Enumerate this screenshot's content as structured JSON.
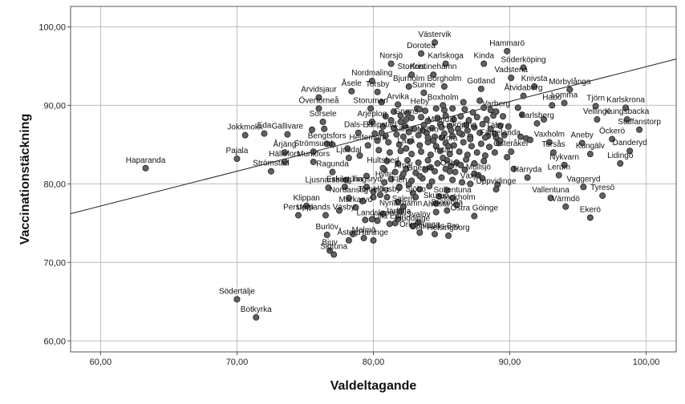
{
  "chart_data": {
    "type": "scatter",
    "xlabel": "Valdeltagande",
    "ylabel": "Vaccinationstäckning",
    "xlim": [
      57.8,
      102.2
    ],
    "ylim": [
      58.6,
      102.6
    ],
    "x_ticks": [
      "60,00",
      "70,00",
      "80,00",
      "90,00",
      "100,00"
    ],
    "y_ticks": [
      "60,00",
      "70,00",
      "80,00",
      "90,00",
      "100,00"
    ],
    "grid": true,
    "colors": {
      "point_fill": "#606060",
      "point_stroke": "#222222",
      "grid": "#bdbdbd",
      "fit_line": "#222222"
    },
    "fit_line": {
      "x": [
        57.8,
        102.2
      ],
      "y": [
        76.2,
        95.9
      ]
    },
    "labeled_points": [
      {
        "name": "Haparanda",
        "x": 63.3,
        "y": 82.0
      },
      {
        "name": "Södertälje",
        "x": 70.0,
        "y": 65.3
      },
      {
        "name": "Botkyrka",
        "x": 71.4,
        "y": 63.0
      },
      {
        "name": "Jokkmokk",
        "x": 70.6,
        "y": 86.2
      },
      {
        "name": "Pajala",
        "x": 70.0,
        "y": 83.2
      },
      {
        "name": "Eda",
        "x": 72.0,
        "y": 86.4
      },
      {
        "name": "Klippan",
        "x": 75.1,
        "y": 77.2
      },
      {
        "name": "Upplands Väsby",
        "x": 76.5,
        "y": 76.0
      },
      {
        "name": "Perstorp",
        "x": 74.5,
        "y": 76.0
      },
      {
        "name": "Burlöv",
        "x": 76.6,
        "y": 73.5
      },
      {
        "name": "Bjuv",
        "x": 76.8,
        "y": 71.5
      },
      {
        "name": "Sigtuna",
        "x": 77.1,
        "y": 71.0
      },
      {
        "name": "Åstorp",
        "x": 78.2,
        "y": 72.8
      },
      {
        "name": "Malmö",
        "x": 79.3,
        "y": 73.1
      },
      {
        "name": "Haninge",
        "x": 80.0,
        "y": 72.8
      },
      {
        "name": "Lilla Edet",
        "x": 81.2,
        "y": 74.9
      },
      {
        "name": "Landskrona",
        "x": 80.3,
        "y": 75.3
      },
      {
        "name": "Huddinge",
        "x": 82.9,
        "y": 74.6
      },
      {
        "name": "Örkelljunga",
        "x": 83.4,
        "y": 73.8
      },
      {
        "name": "Upplands-Bro",
        "x": 84.5,
        "y": 73.6
      },
      {
        "name": "Helsingborg",
        "x": 85.5,
        "y": 73.4
      },
      {
        "name": "Järfälla",
        "x": 81.8,
        "y": 75.5
      },
      {
        "name": "Svalöv",
        "x": 83.3,
        "y": 75.1
      },
      {
        "name": "Alvesta",
        "x": 84.6,
        "y": 76.4
      },
      {
        "name": "Nynäshamn",
        "x": 82.0,
        "y": 76.5
      },
      {
        "name": "Bromölla",
        "x": 85.4,
        "y": 76.6
      },
      {
        "name": "Salem",
        "x": 82.2,
        "y": 77.1
      },
      {
        "name": "Markaryd",
        "x": 78.7,
        "y": 77.0
      },
      {
        "name": "Nordanstig",
        "x": 78.2,
        "y": 78.2
      },
      {
        "name": "Tomelilla",
        "x": 80.0,
        "y": 78.3
      },
      {
        "name": "Högsby",
        "x": 81.0,
        "y": 78.3
      },
      {
        "name": "Sjöbo",
        "x": 83.1,
        "y": 78.3
      },
      {
        "name": "Skurup",
        "x": 84.6,
        "y": 77.5
      },
      {
        "name": "Stockholm",
        "x": 86.1,
        "y": 77.3
      },
      {
        "name": "Östra Göinge",
        "x": 87.4,
        "y": 75.9
      },
      {
        "name": "Sollentuna",
        "x": 85.8,
        "y": 78.2
      },
      {
        "name": "Ljusnarsberg",
        "x": 76.7,
        "y": 79.5
      },
      {
        "name": "Eskilstuna",
        "x": 77.9,
        "y": 79.6
      },
      {
        "name": "Tingsryd",
        "x": 79.5,
        "y": 79.6
      },
      {
        "name": "Hylte",
        "x": 80.8,
        "y": 80.2
      },
      {
        "name": "Flen",
        "x": 81.9,
        "y": 79.5
      },
      {
        "name": "Åmål",
        "x": 82.2,
        "y": 81.3
      },
      {
        "name": "Gnesta",
        "x": 83.4,
        "y": 81.0
      },
      {
        "name": "Osby",
        "x": 85.6,
        "y": 81.6
      },
      {
        "name": "Mullsjö",
        "x": 87.7,
        "y": 81.1
      },
      {
        "name": "Växjö",
        "x": 87.1,
        "y": 80.0
      },
      {
        "name": "Uppvidinge",
        "x": 89.0,
        "y": 79.3
      },
      {
        "name": "Hultsfred",
        "x": 80.7,
        "y": 82.0
      },
      {
        "name": "Ragunda",
        "x": 77.0,
        "y": 81.5
      },
      {
        "name": "Strömstad",
        "x": 72.5,
        "y": 81.6
      },
      {
        "name": "Hällefors",
        "x": 73.5,
        "y": 82.8
      },
      {
        "name": "Munkfors",
        "x": 75.6,
        "y": 82.8
      },
      {
        "name": "Årjäng",
        "x": 73.5,
        "y": 84.0
      },
      {
        "name": "Strömsund",
        "x": 75.6,
        "y": 84.1
      },
      {
        "name": "Ljusdal",
        "x": 78.2,
        "y": 83.3
      },
      {
        "name": "Bengtsfors",
        "x": 76.6,
        "y": 85.1
      },
      {
        "name": "Hedemora",
        "x": 79.6,
        "y": 84.9
      },
      {
        "name": "Gällivare",
        "x": 73.7,
        "y": 86.3
      },
      {
        "name": "Dals-Ed",
        "x": 78.9,
        "y": 86.5
      },
      {
        "name": "Filipstad",
        "x": 80.6,
        "y": 86.5
      },
      {
        "name": "Säffle",
        "x": 82.2,
        "y": 86.0
      },
      {
        "name": "Laxå",
        "x": 82.4,
        "y": 84.5
      },
      {
        "name": "Sorsele",
        "x": 76.3,
        "y": 87.9
      },
      {
        "name": "Arjeplog",
        "x": 79.9,
        "y": 87.9
      },
      {
        "name": "Grums",
        "x": 82.4,
        "y": 88.2
      },
      {
        "name": "Övertorneå",
        "x": 76.0,
        "y": 89.6
      },
      {
        "name": "Arvidsjaur",
        "x": 76.0,
        "y": 91.0
      },
      {
        "name": "Storuman",
        "x": 79.8,
        "y": 89.6
      },
      {
        "name": "Arvika",
        "x": 81.8,
        "y": 90.1
      },
      {
        "name": "Heby",
        "x": 83.4,
        "y": 89.5
      },
      {
        "name": "Boxholm",
        "x": 85.1,
        "y": 90.0
      },
      {
        "name": "Åsele",
        "x": 78.4,
        "y": 91.8
      },
      {
        "name": "Torsby",
        "x": 80.3,
        "y": 91.7
      },
      {
        "name": "Sunne",
        "x": 83.7,
        "y": 91.6
      },
      {
        "name": "Nordmaling",
        "x": 79.9,
        "y": 93.1
      },
      {
        "name": "Bjurholm",
        "x": 82.6,
        "y": 92.4
      },
      {
        "name": "Borgholm",
        "x": 85.2,
        "y": 92.4
      },
      {
        "name": "Gotland",
        "x": 87.9,
        "y": 92.1
      },
      {
        "name": "Storfors",
        "x": 82.8,
        "y": 93.9
      },
      {
        "name": "Kristinehamn",
        "x": 84.4,
        "y": 93.9
      },
      {
        "name": "Norsjö",
        "x": 81.3,
        "y": 95.3
      },
      {
        "name": "Karlskoga",
        "x": 85.3,
        "y": 95.3
      },
      {
        "name": "Kinda",
        "x": 88.1,
        "y": 95.3
      },
      {
        "name": "Dorotea",
        "x": 83.5,
        "y": 96.6
      },
      {
        "name": "Västervik",
        "x": 84.5,
        "y": 98.0
      },
      {
        "name": "Hammarö",
        "x": 89.8,
        "y": 96.9
      },
      {
        "name": "Söderköping",
        "x": 91.0,
        "y": 94.8
      },
      {
        "name": "Vadstena",
        "x": 90.1,
        "y": 93.5
      },
      {
        "name": "Knivsta",
        "x": 91.8,
        "y": 92.4
      },
      {
        "name": "Åtvidaberg",
        "x": 91.0,
        "y": 91.2
      },
      {
        "name": "Mörbylånga",
        "x": 94.4,
        "y": 92.0
      },
      {
        "name": "Habo",
        "x": 93.1,
        "y": 90.0
      },
      {
        "name": "Lomma",
        "x": 94.0,
        "y": 90.3
      },
      {
        "name": "Varberg",
        "x": 89.0,
        "y": 89.2
      },
      {
        "name": "Tjörn",
        "x": 96.3,
        "y": 89.9
      },
      {
        "name": "Karlskrona",
        "x": 98.5,
        "y": 89.7
      },
      {
        "name": "Vellinge",
        "x": 96.4,
        "y": 88.2
      },
      {
        "name": "Kungsbacka",
        "x": 98.6,
        "y": 88.2
      },
      {
        "name": "Staffanstorp",
        "x": 99.5,
        "y": 86.9
      },
      {
        "name": "Karlsberg",
        "x": 92.0,
        "y": 87.7
      },
      {
        "name": "Täby",
        "x": 88.9,
        "y": 86.4
      },
      {
        "name": "Öckerö",
        "x": 97.5,
        "y": 85.7
      },
      {
        "name": "Aneby",
        "x": 95.3,
        "y": 85.2
      },
      {
        "name": "Vaxholm",
        "x": 92.9,
        "y": 85.3
      },
      {
        "name": "Danderyd",
        "x": 98.8,
        "y": 84.2
      },
      {
        "name": "Österåker",
        "x": 90.1,
        "y": 84.1
      },
      {
        "name": "Torsås",
        "x": 93.2,
        "y": 84.0
      },
      {
        "name": "Kungälv",
        "x": 95.9,
        "y": 83.8
      },
      {
        "name": "Färgelanda",
        "x": 89.3,
        "y": 85.5
      },
      {
        "name": "Lidingö",
        "x": 98.1,
        "y": 82.6
      },
      {
        "name": "Nykvarn",
        "x": 94.0,
        "y": 82.4
      },
      {
        "name": "Härryda",
        "x": 91.3,
        "y": 80.8
      },
      {
        "name": "Lerum",
        "x": 93.6,
        "y": 81.1
      },
      {
        "name": "Vaggeryd",
        "x": 95.4,
        "y": 79.6
      },
      {
        "name": "Vallentuna",
        "x": 93.0,
        "y": 78.2
      },
      {
        "name": "Tyresö",
        "x": 96.8,
        "y": 78.5
      },
      {
        "name": "Värmdö",
        "x": 94.1,
        "y": 77.1
      },
      {
        "name": "Ekerö",
        "x": 95.9,
        "y": 75.7
      },
      {
        "name": "Mölndal",
        "x": 85.0,
        "y": 87.2
      },
      {
        "name": "Linköping",
        "x": 86.3,
        "y": 86.5
      },
      {
        "name": "Nybro",
        "x": 84.0,
        "y": 85.9
      },
      {
        "name": "Ystad",
        "x": 85.1,
        "y": 83.3
      },
      {
        "name": "Mora",
        "x": 85.5,
        "y": 84.8
      }
    ],
    "cloud_points": [
      [
        81.5,
        89.2
      ],
      [
        82.0,
        88.7
      ],
      [
        82.5,
        89.0
      ],
      [
        83.2,
        89.6
      ],
      [
        83.8,
        89.3
      ],
      [
        84.6,
        89.6
      ],
      [
        85.2,
        89.4
      ],
      [
        85.8,
        89.6
      ],
      [
        86.7,
        89.5
      ],
      [
        87.3,
        89.1
      ],
      [
        88.1,
        89.7
      ],
      [
        88.6,
        89.4
      ],
      [
        80.9,
        88.6
      ],
      [
        81.3,
        88.1
      ],
      [
        82.0,
        87.9
      ],
      [
        82.8,
        88.4
      ],
      [
        83.5,
        88.5
      ],
      [
        84.0,
        88.0
      ],
      [
        84.7,
        88.4
      ],
      [
        85.3,
        88.7
      ],
      [
        85.9,
        88.2
      ],
      [
        86.4,
        88.6
      ],
      [
        87.0,
        88.1
      ],
      [
        87.6,
        88.5
      ],
      [
        88.3,
        88.2
      ],
      [
        88.8,
        88.7
      ],
      [
        89.5,
        88.6
      ],
      [
        80.7,
        87.3
      ],
      [
        81.5,
        87.1
      ],
      [
        82.3,
        87.4
      ],
      [
        83.0,
        87.0
      ],
      [
        83.7,
        87.5
      ],
      [
        84.3,
        87.1
      ],
      [
        84.9,
        87.6
      ],
      [
        85.6,
        87.3
      ],
      [
        86.2,
        87.0
      ],
      [
        86.8,
        87.5
      ],
      [
        87.4,
        87.2
      ],
      [
        88.0,
        87.6
      ],
      [
        88.6,
        87.0
      ],
      [
        89.3,
        87.4
      ],
      [
        89.9,
        87.3
      ],
      [
        80.1,
        86.4
      ],
      [
        80.9,
        86.1
      ],
      [
        81.7,
        86.3
      ],
      [
        82.6,
        86.6
      ],
      [
        83.3,
        86.2
      ],
      [
        83.9,
        86.5
      ],
      [
        84.5,
        86.0
      ],
      [
        85.2,
        86.4
      ],
      [
        85.8,
        86.1
      ],
      [
        86.5,
        86.3
      ],
      [
        87.1,
        86.0
      ],
      [
        87.8,
        86.5
      ],
      [
        88.4,
        86.1
      ],
      [
        89.0,
        85.9
      ],
      [
        89.6,
        86.2
      ],
      [
        90.8,
        86.0
      ],
      [
        91.2,
        85.8
      ],
      [
        81.1,
        85.3
      ],
      [
        81.9,
        85.0
      ],
      [
        82.7,
        85.4
      ],
      [
        83.4,
        84.9
      ],
      [
        84.0,
        85.3
      ],
      [
        84.6,
        84.8
      ],
      [
        85.3,
        85.2
      ],
      [
        85.9,
        84.9
      ],
      [
        86.6,
        85.3
      ],
      [
        87.2,
        84.8
      ],
      [
        87.9,
        85.1
      ],
      [
        88.5,
        84.7
      ],
      [
        89.2,
        85.2
      ],
      [
        80.4,
        84.3
      ],
      [
        81.2,
        84.0
      ],
      [
        82.0,
        84.2
      ],
      [
        82.8,
        83.8
      ],
      [
        83.5,
        84.1
      ],
      [
        84.2,
        83.7
      ],
      [
        84.9,
        84.2
      ],
      [
        85.6,
        83.8
      ],
      [
        86.3,
        84.1
      ],
      [
        86.9,
        83.7
      ],
      [
        87.6,
        84.0
      ],
      [
        88.2,
        83.6
      ],
      [
        88.9,
        84.0
      ],
      [
        81.0,
        82.9
      ],
      [
        81.8,
        82.6
      ],
      [
        82.5,
        83.0
      ],
      [
        83.3,
        82.7
      ],
      [
        84.0,
        83.0
      ],
      [
        84.7,
        82.6
      ],
      [
        85.4,
        83.0
      ],
      [
        86.1,
        82.7
      ],
      [
        86.8,
        83.1
      ],
      [
        87.4,
        82.6
      ],
      [
        88.1,
        82.9
      ],
      [
        80.8,
        81.8
      ],
      [
        81.6,
        81.5
      ],
      [
        82.4,
        81.9
      ],
      [
        83.1,
        81.4
      ],
      [
        83.8,
        81.8
      ],
      [
        84.5,
        81.6
      ],
      [
        85.3,
        81.9
      ],
      [
        86.0,
        81.5
      ],
      [
        86.7,
        81.8
      ],
      [
        87.4,
        81.3
      ],
      [
        81.3,
        80.6
      ],
      [
        82.1,
        80.9
      ],
      [
        82.8,
        80.4
      ],
      [
        83.6,
        80.7
      ],
      [
        84.3,
        80.3
      ],
      [
        85.0,
        80.8
      ],
      [
        85.8,
        80.5
      ],
      [
        86.5,
        80.2
      ],
      [
        81.9,
        79.6
      ],
      [
        82.6,
        79.9
      ],
      [
        83.4,
        79.3
      ],
      [
        84.1,
        79.7
      ],
      [
        80.0,
        79.0
      ],
      [
        82.9,
        78.8
      ],
      [
        79.4,
        75.4
      ],
      [
        79.9,
        75.5
      ],
      [
        80.7,
        76.2
      ],
      [
        81.6,
        75.0
      ],
      [
        78.5,
        73.6
      ],
      [
        84.2,
        82.1
      ],
      [
        85.7,
        82.3
      ],
      [
        86.4,
        82.4
      ],
      [
        87.1,
        85.7
      ],
      [
        83.6,
        86.8
      ],
      [
        84.4,
        85.5
      ],
      [
        85.0,
        85.9
      ],
      [
        85.7,
        86.8
      ],
      [
        86.9,
        86.8
      ],
      [
        88.2,
        85.9
      ],
      [
        80.3,
        85.5
      ],
      [
        79.0,
        83.6
      ],
      [
        78.1,
        84.5
      ],
      [
        77.0,
        85.0
      ],
      [
        76.4,
        87.0
      ],
      [
        75.5,
        86.9
      ],
      [
        80.6,
        90.4
      ],
      [
        86.6,
        90.4
      ],
      [
        87.8,
        90.6
      ],
      [
        90.9,
        88.8
      ],
      [
        91.5,
        85.6
      ],
      [
        92.5,
        88.2
      ],
      [
        89.8,
        83.4
      ],
      [
        90.3,
        81.9
      ],
      [
        88.0,
        80.7
      ],
      [
        89.1,
        79.9
      ],
      [
        90.6,
        89.7
      ],
      [
        85.4,
        79.2
      ],
      [
        84.8,
        78.4
      ],
      [
        81.8,
        77.7
      ],
      [
        80.5,
        78.6
      ],
      [
        79.2,
        77.8
      ],
      [
        77.5,
        76.6
      ],
      [
        78.0,
        80.5
      ],
      [
        79.5,
        81.0
      ]
    ]
  }
}
